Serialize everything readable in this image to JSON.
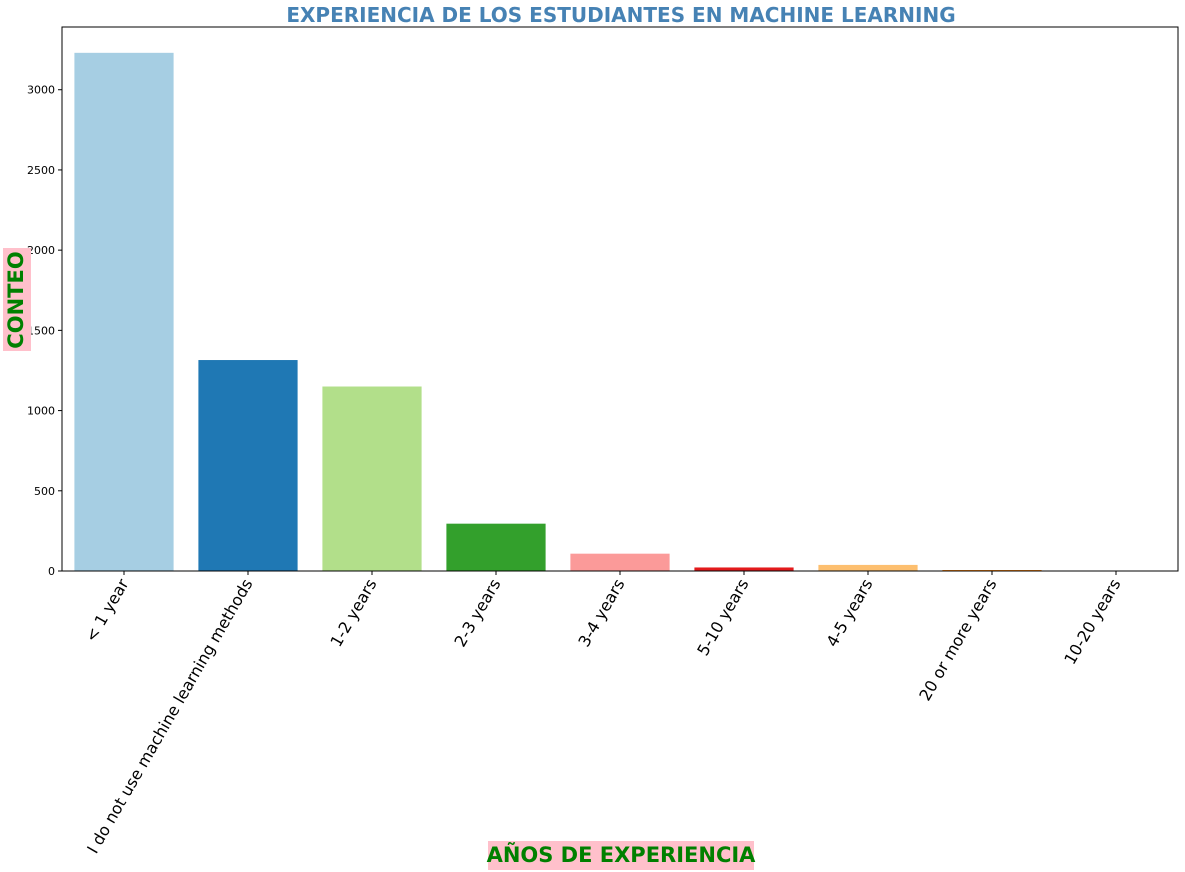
{
  "chart_data": {
    "type": "bar",
    "title": "EXPERIENCIA DE LOS ESTUDIANTES EN MACHINE LEARNING",
    "xlabel": "AÑOS DE EXPERIENCIA",
    "ylabel": "CONTEO",
    "categories": [
      "< 1 year",
      "I do not use machine learning methods",
      "1-2 years",
      "2-3 years",
      "3-4 years",
      "5-10 years",
      "4-5 years",
      "20 or more years",
      "10-20 years"
    ],
    "values": [
      3230,
      1315,
      1150,
      295,
      108,
      22,
      38,
      6,
      2
    ],
    "colors": [
      "#a6cee3",
      "#1f78b4",
      "#b2df8a",
      "#33a02c",
      "#fb9a99",
      "#e31a1c",
      "#fdbf6f",
      "#ff7f00",
      "#cab2d6"
    ],
    "yticks": [
      0,
      500,
      1000,
      1500,
      2000,
      2500,
      3000
    ],
    "ylim": [
      0,
      3391
    ],
    "grid": false,
    "title_color": "#4682b4",
    "label_color": "#008000",
    "label_background": "#ffc0cb"
  }
}
